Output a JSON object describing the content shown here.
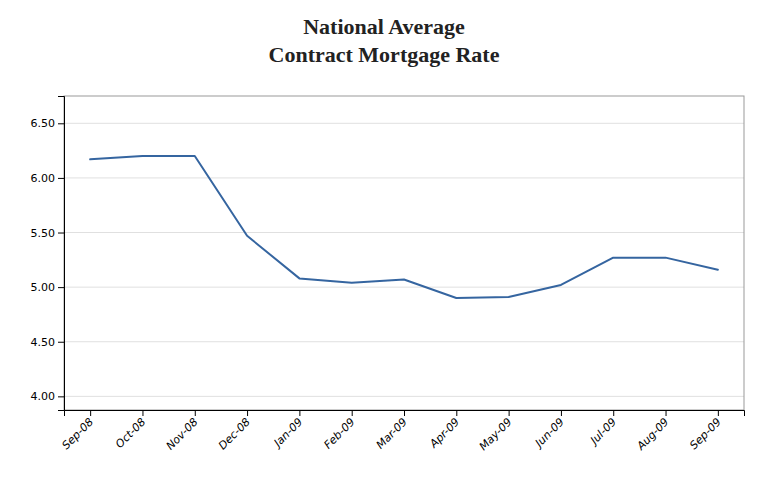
{
  "chart_data": {
    "type": "line",
    "title": "National Average\nContract Mortgage Rate",
    "categories": [
      "Sep-08",
      "Oct-08",
      "Nov-08",
      "Dec-08",
      "Jan-09",
      "Feb-09",
      "Mar-09",
      "Apr-09",
      "May-09",
      "Jun-09",
      "Jul-09",
      "Aug-09",
      "Sep-09"
    ],
    "values": [
      6.17,
      6.2,
      6.2,
      5.47,
      5.08,
      5.04,
      5.07,
      4.9,
      4.91,
      5.02,
      5.27,
      5.27,
      5.16
    ],
    "color": "#3565A0",
    "ylim": [
      3.875,
      6.75
    ],
    "yticks": [
      {
        "value": 4.0,
        "label": "4.00"
      },
      {
        "value": 4.5,
        "label": "4.50"
      },
      {
        "value": 5.0,
        "label": "5.00"
      },
      {
        "value": 5.5,
        "label": "5.50"
      },
      {
        "value": 6.0,
        "label": "6.00"
      },
      {
        "value": 6.5,
        "label": "6.50"
      }
    ],
    "grid": true
  }
}
